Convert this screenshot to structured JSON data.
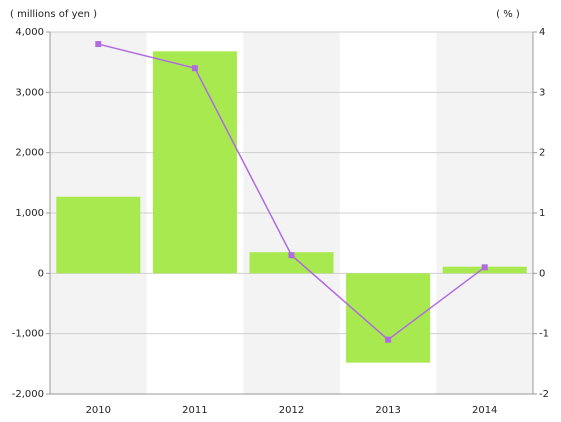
{
  "chart_data": {
    "type": "bar",
    "y_axis_label": "( millions of yen )",
    "y2_axis_label": "( % )",
    "categories": [
      "2010",
      "2011",
      "2012",
      "2013",
      "2014"
    ],
    "series": [
      {
        "type": "bar",
        "color": "#a8e94f",
        "values": [
          1270,
          3680,
          350,
          -1480,
          110
        ]
      },
      {
        "type": "line",
        "axis": "y2",
        "color": "#b06be0",
        "values": [
          3.8,
          3.4,
          0.3,
          -1.1,
          0.1
        ]
      }
    ],
    "ylim": [
      -2000,
      4000
    ],
    "yticks": [
      {
        "value": -2000,
        "label": "-2,000"
      },
      {
        "value": -1000,
        "label": "-1,000"
      },
      0,
      {
        "value": 1000,
        "label": "1,000"
      },
      {
        "value": 2000,
        "label": "2,000"
      },
      {
        "value": 3000,
        "label": "3,000"
      },
      {
        "value": 4000,
        "label": "4,000"
      }
    ],
    "y2lim": [
      -2,
      4
    ],
    "y2ticks": [
      -2,
      -1,
      0,
      1,
      2,
      3,
      4
    ],
    "grid": true
  }
}
